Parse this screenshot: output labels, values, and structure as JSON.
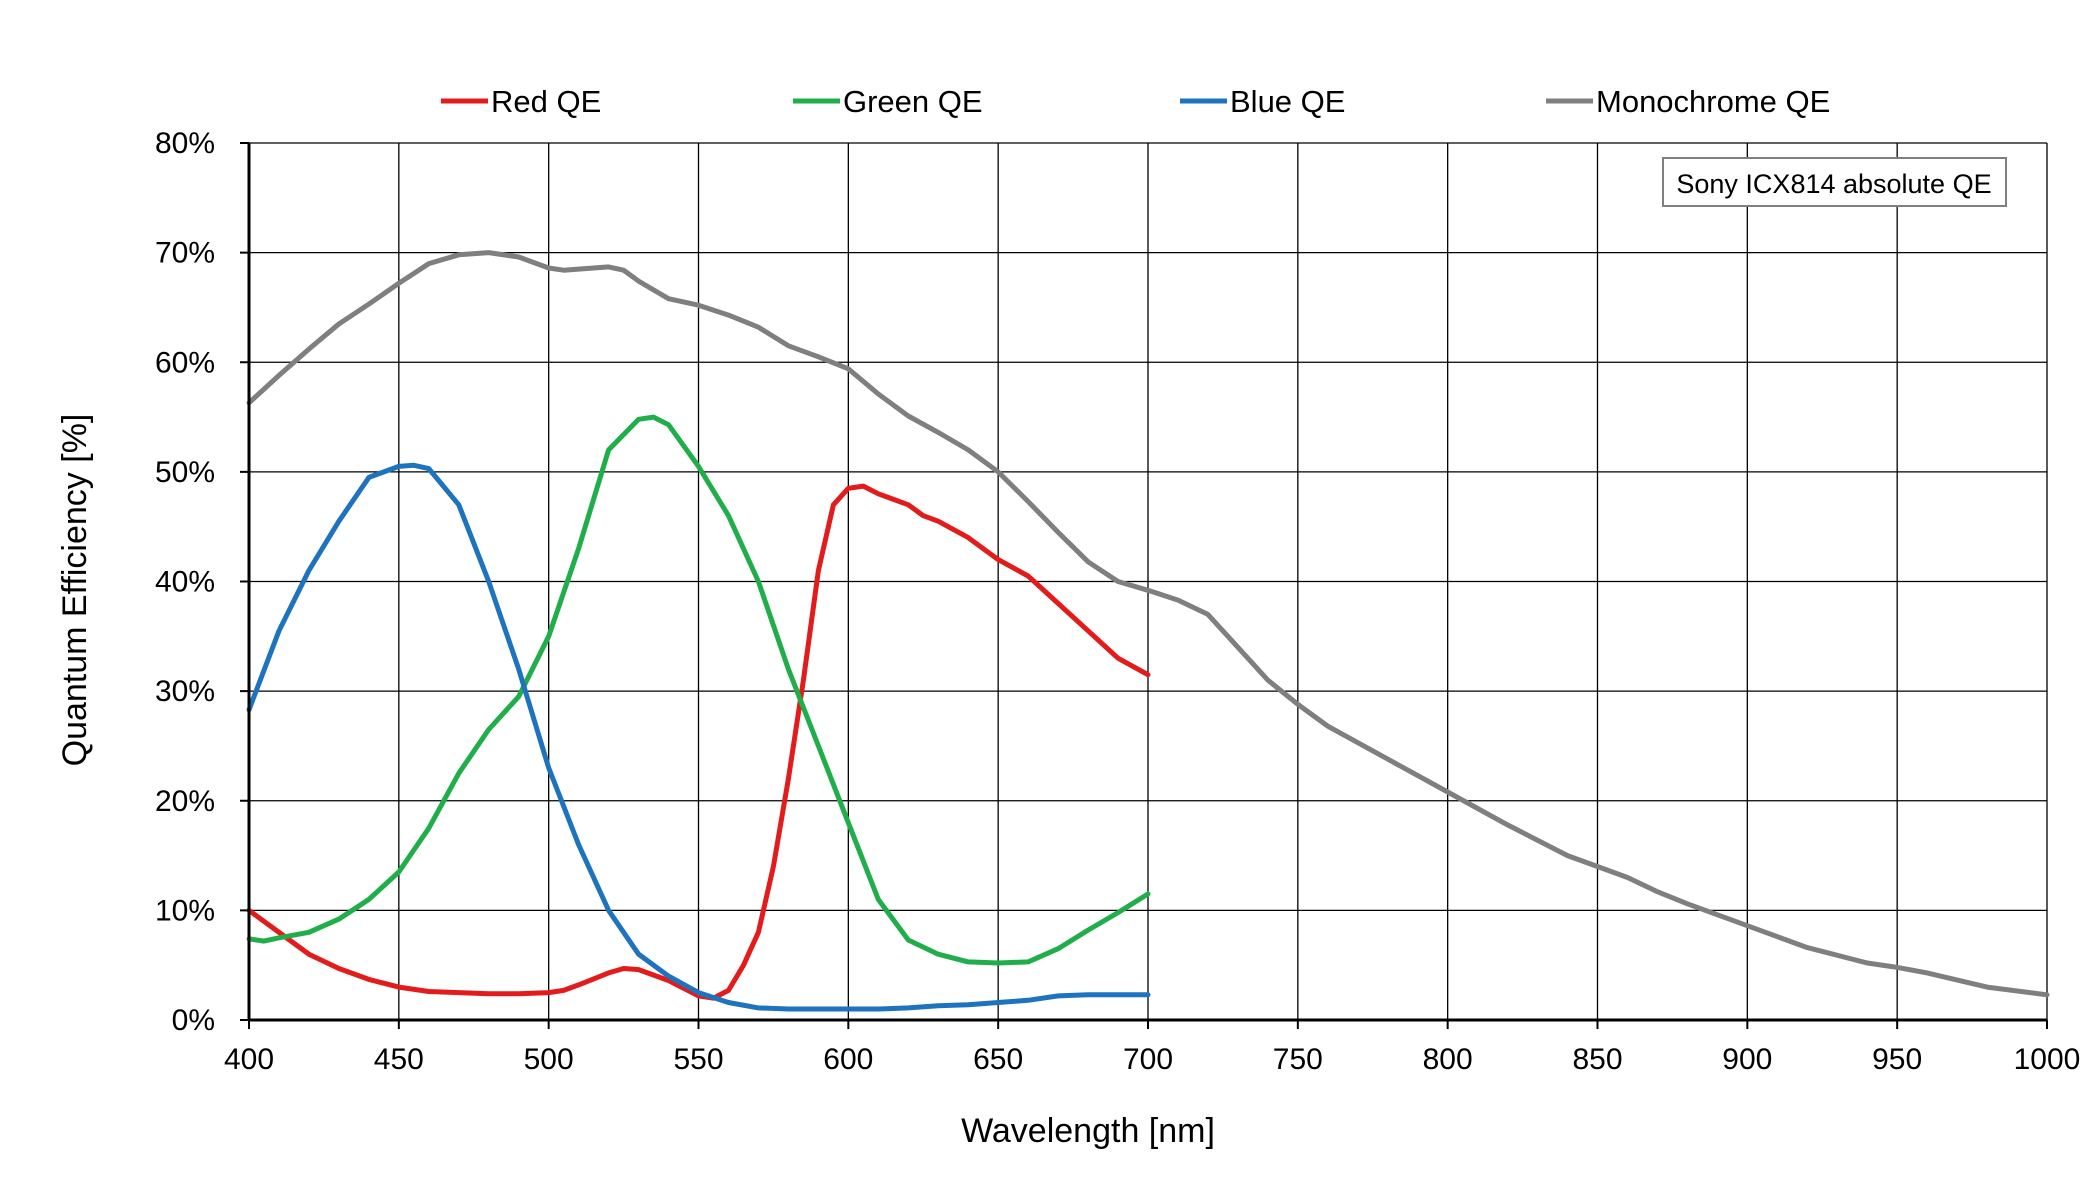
{
  "chart_data": {
    "type": "line",
    "xlabel": "Wavelength [nm]",
    "ylabel": "Quantum Efficiency [%]",
    "xlim": [
      400,
      1000
    ],
    "ylim": [
      0,
      80
    ],
    "x_ticks": [
      "400",
      "450",
      "500",
      "550",
      "600",
      "650",
      "700",
      "750",
      "800",
      "850",
      "900",
      "950",
      "1000"
    ],
    "y_ticks": [
      "0%",
      "10%",
      "20%",
      "30%",
      "40%",
      "50%",
      "60%",
      "70%",
      "80%"
    ],
    "grid": true,
    "legend_position": "top",
    "annotation": "Sony ICX814 absolute QE",
    "series": [
      {
        "name": "Red QE",
        "color": "#e31b1b",
        "x": [
          400,
          410,
          420,
          430,
          440,
          450,
          460,
          470,
          480,
          490,
          500,
          505,
          510,
          520,
          525,
          530,
          540,
          550,
          555,
          560,
          565,
          570,
          575,
          580,
          585,
          590,
          595,
          600,
          605,
          610,
          620,
          625,
          630,
          640,
          650,
          660,
          670,
          680,
          690,
          700
        ],
        "y": [
          10,
          8,
          6,
          4.7,
          3.7,
          3,
          2.6,
          2.5,
          2.4,
          2.4,
          2.5,
          2.7,
          3.2,
          4.3,
          4.7,
          4.6,
          3.6,
          2.2,
          2,
          2.7,
          5,
          8,
          14,
          22,
          31,
          41,
          47,
          48.5,
          48.7,
          48,
          47,
          46,
          45.5,
          44,
          42,
          40.5,
          38,
          35.5,
          33,
          31.5
        ]
      },
      {
        "name": "Green QE",
        "color": "#1fae4a",
        "x": [
          400,
          405,
          410,
          420,
          430,
          440,
          450,
          460,
          470,
          480,
          490,
          500,
          510,
          520,
          530,
          535,
          540,
          550,
          560,
          570,
          580,
          590,
          600,
          610,
          620,
          630,
          640,
          650,
          660,
          670,
          680,
          690,
          700
        ],
        "y": [
          7.4,
          7.2,
          7.5,
          8,
          9.2,
          11,
          13.5,
          17.5,
          22.5,
          26.5,
          29.5,
          35,
          43,
          52,
          54.8,
          55,
          54.3,
          50.5,
          46,
          40,
          32,
          25,
          18,
          11,
          7.3,
          6,
          5.3,
          5.2,
          5.3,
          6.5,
          8.2,
          9.8,
          11.5
        ]
      },
      {
        "name": "Blue QE",
        "color": "#1e73be",
        "x": [
          400,
          410,
          420,
          430,
          440,
          450,
          455,
          460,
          470,
          480,
          490,
          500,
          510,
          520,
          530,
          540,
          550,
          560,
          570,
          580,
          590,
          600,
          610,
          620,
          630,
          640,
          650,
          660,
          670,
          680,
          690,
          700
        ],
        "y": [
          28.3,
          35.5,
          41,
          45.5,
          49.5,
          50.5,
          50.6,
          50.3,
          47,
          40,
          32,
          23,
          16,
          10,
          6,
          4,
          2.5,
          1.6,
          1.1,
          1,
          1,
          1,
          1,
          1.1,
          1.3,
          1.4,
          1.6,
          1.8,
          2.2,
          2.3,
          2.3,
          2.3
        ]
      },
      {
        "name": "Monochrome QE",
        "color": "#7f7f7f",
        "x": [
          400,
          410,
          420,
          430,
          440,
          450,
          460,
          470,
          480,
          490,
          500,
          505,
          510,
          520,
          525,
          530,
          540,
          550,
          560,
          570,
          580,
          590,
          600,
          610,
          620,
          630,
          640,
          650,
          660,
          670,
          680,
          690,
          700,
          710,
          720,
          730,
          740,
          750,
          760,
          780,
          800,
          820,
          840,
          850,
          860,
          870,
          880,
          900,
          920,
          940,
          950,
          960,
          980,
          1000
        ],
        "y": [
          56.3,
          58.8,
          61.2,
          63.5,
          65.3,
          67.2,
          69,
          69.8,
          70,
          69.6,
          68.6,
          68.4,
          68.5,
          68.7,
          68.4,
          67.4,
          65.8,
          65.2,
          64.3,
          63.2,
          61.5,
          60.5,
          59.4,
          57.1,
          55.1,
          53.6,
          52,
          50,
          47.3,
          44.5,
          41.8,
          40,
          39.2,
          38.3,
          37,
          34,
          31,
          28.8,
          26.8,
          23.8,
          20.8,
          17.8,
          15,
          14,
          13,
          11.7,
          10.6,
          8.6,
          6.6,
          5.2,
          4.8,
          4.3,
          3,
          2.3
        ]
      }
    ]
  }
}
